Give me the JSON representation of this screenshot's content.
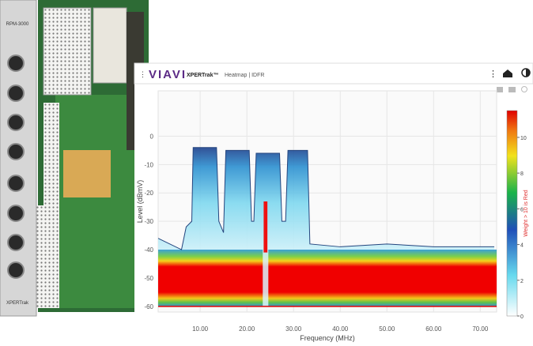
{
  "board": {
    "model": "RPM-3000",
    "label": "XPERTrak"
  },
  "header": {
    "brand": "VIAVI",
    "product": "XPERTrak™",
    "page": "Heatmap | IDFR"
  },
  "chart_data": {
    "type": "heatmap",
    "x_label": "Frequency (MHz)",
    "y_label": "Level (dBmV)",
    "x": [
      1,
      6,
      7,
      8.2,
      8.5,
      13.5,
      14,
      15,
      15.5,
      20.5,
      21,
      21.5,
      22,
      27,
      27.5,
      28.3,
      28.8,
      33,
      33.5,
      40,
      50,
      60,
      73
    ],
    "series": [
      {
        "color": "#24457e",
        "values": [
          -36,
          -40,
          -32,
          -30,
          -4,
          -4,
          -30,
          -34,
          -5,
          -5,
          -30,
          -30,
          -6,
          -6,
          -30,
          -30,
          -5,
          -5,
          -38,
          -39,
          -38,
          -39,
          -39
        ]
      }
    ],
    "xlim": [
      1,
      73.5
    ],
    "xticks": [
      {
        "value": 10,
        "label": "10.00"
      },
      {
        "value": 20,
        "label": "20.00"
      },
      {
        "value": 30,
        "label": "30.00"
      },
      {
        "value": 40,
        "label": "40.00"
      },
      {
        "value": 50,
        "label": "50.00"
      },
      {
        "value": 60,
        "label": "60.00"
      },
      {
        "value": 70,
        "label": "70.00"
      }
    ],
    "ylim": [
      -62,
      16
    ],
    "yticks": [
      -60,
      -50,
      -40,
      -30,
      -20,
      -10,
      0
    ],
    "grid": true,
    "colorbar": {
      "lim": [
        0,
        11.5
      ],
      "ticks": [
        0,
        2,
        4,
        6,
        8,
        10
      ],
      "label": "Weight > 10 is Red"
    }
  }
}
